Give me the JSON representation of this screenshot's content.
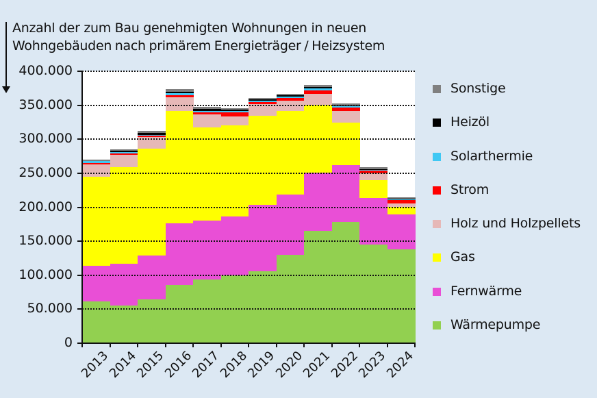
{
  "chart_data": {
    "type": "bar",
    "stacked": true,
    "title": "Anzahl der zum Bau genehmigten Wohnungen in neuen Wohngebäuden nach primärem Energieträger / Heizsystem",
    "title_lines": [
      "Anzahl der zum Bau genehmigten Wohnungen in neuen",
      "Wohngebäuden  nach primärem  Energieträger  / Heizsystem"
    ],
    "xlabel": "",
    "ylabel": "Anzahl der zum Bau genehmigten Wohnungen",
    "ylim": [
      0,
      400000
    ],
    "yticks": [
      0,
      50000,
      100000,
      150000,
      200000,
      250000,
      300000,
      350000,
      400000
    ],
    "ytick_labels": [
      "0",
      "50.000",
      "100.000",
      "150.000",
      "200.000",
      "250.000",
      "300.000",
      "350.000",
      "400.000"
    ],
    "grid": "horizontal dotted (above bars)",
    "legend_position": "right",
    "categories": [
      "2013",
      "2014",
      "2015",
      "2016",
      "2017",
      "2018",
      "2019",
      "2020",
      "2021",
      "2022",
      "2023",
      "2024"
    ],
    "series": [
      {
        "name": "Wärmepumpe",
        "color": "#92d050",
        "values": [
          61000,
          55000,
          64000,
          86000,
          94000,
          100000,
          106000,
          130000,
          165000,
          178000,
          145000,
          138000
        ]
      },
      {
        "name": "Fernwärme",
        "color": "#e94fd6",
        "values": [
          53000,
          62000,
          65000,
          90000,
          86000,
          86000,
          98000,
          89000,
          86000,
          84000,
          69000,
          51000
        ]
      },
      {
        "name": "Gas",
        "color": "#ffff00",
        "values": [
          131000,
          142000,
          157000,
          166000,
          137000,
          134000,
          131000,
          123000,
          100000,
          62000,
          26000,
          12000
        ]
      },
      {
        "name": "Holz und Holzpellets",
        "color": "#e6b8b7",
        "values": [
          18000,
          18000,
          17000,
          20000,
          20000,
          14000,
          17000,
          15000,
          16000,
          18000,
          10000,
          5000
        ]
      },
      {
        "name": "Strom",
        "color": "#ff0000",
        "values": [
          2000,
          2000,
          2000,
          3000,
          3000,
          6000,
          3000,
          4000,
          5000,
          5000,
          4000,
          5000
        ]
      },
      {
        "name": "Solarthermie",
        "color": "#3fc8f4",
        "values": [
          3000,
          2000,
          1000,
          3000,
          2000,
          2000,
          2000,
          2000,
          3000,
          2000,
          1000,
          1000
        ]
      },
      {
        "name": "Heizöl",
        "color": "#000000",
        "values": [
          500,
          2000,
          3000,
          2000,
          3000,
          2000,
          2000,
          2000,
          2000,
          1000,
          1000,
          1000
        ]
      },
      {
        "name": "Sonstige",
        "color": "#808080",
        "values": [
          1500,
          2000,
          3000,
          4000,
          3000,
          2000,
          2000,
          2000,
          3000,
          3000,
          3000,
          2000
        ]
      }
    ],
    "legend_order": [
      "Sonstige",
      "Heizöl",
      "Solarthermie",
      "Strom",
      "Holz und Holzpellets",
      "Gas",
      "Fernwärme",
      "Wärmepumpe"
    ]
  },
  "colors": {
    "background": "#dce8f3",
    "plot_background": "#ffffff",
    "axis": "#111111"
  }
}
